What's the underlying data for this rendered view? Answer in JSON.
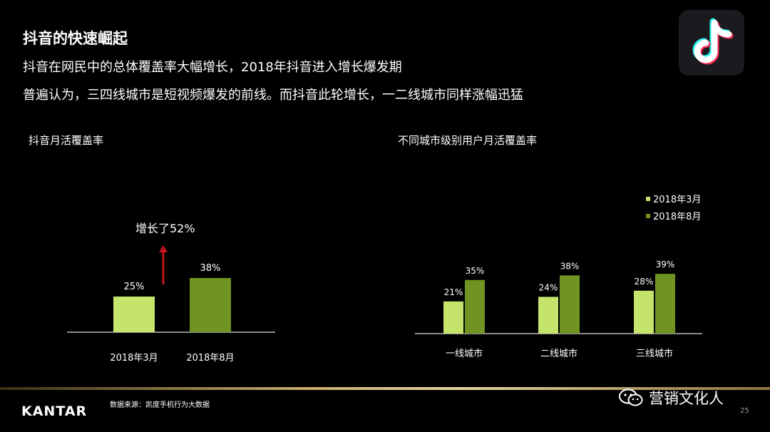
{
  "header": {
    "title": "抖音的快速崛起",
    "line1": "抖音在网民中的总体覆盖率大幅增长，2018年抖音进入增长爆发期",
    "line2": "普遍认为，三四线城市是短视频爆发的前线。而抖音此轮增长，一二线城市同样涨幅迅猛"
  },
  "logo": {
    "icon": "tiktok-note-icon"
  },
  "colors": {
    "light_green": "#c5e46c",
    "dark_green": "#6f9424",
    "arrow_red": "#c0151b",
    "axis": "#8c8c8c"
  },
  "chart_data": [
    {
      "type": "bar",
      "title": "抖音月活覆盖率",
      "categories": [
        "2018年3月",
        "2018年8月"
      ],
      "values": [
        25,
        38
      ],
      "value_labels": [
        "25%",
        "38%"
      ],
      "annotation": "增长了52%",
      "ylim": [
        0,
        100
      ]
    },
    {
      "type": "bar",
      "title": "不同城市级别用户月活覆盖率",
      "categories": [
        "一线城市",
        "二线城市",
        "三线城市"
      ],
      "series": [
        {
          "name": "2018年3月",
          "values": [
            21,
            24,
            28
          ],
          "labels": [
            "21%",
            "24%",
            "28%"
          ]
        },
        {
          "name": "2018年8月",
          "values": [
            35,
            38,
            39
          ],
          "labels": [
            "35%",
            "38%",
            "39%"
          ]
        }
      ],
      "legend_position": "top-right",
      "ylim": [
        0,
        100
      ]
    }
  ],
  "footer": {
    "brand": "KANTAR",
    "source": "数据来源：凯度手机行为大数据",
    "wechat_label": "营销文化人",
    "page": "25"
  }
}
